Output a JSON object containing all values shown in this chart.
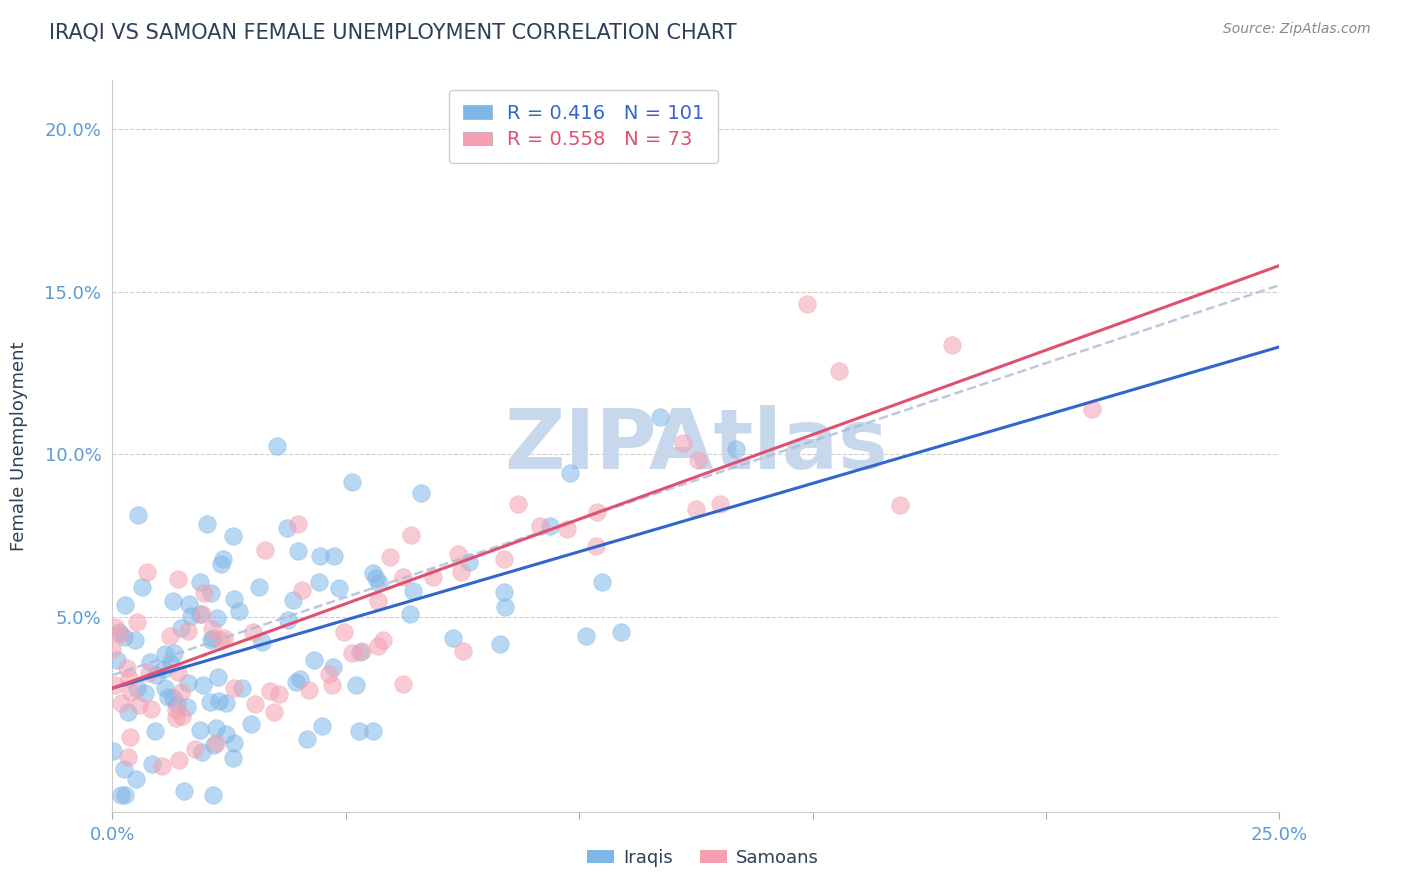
{
  "title": "IRAQI VS SAMOAN FEMALE UNEMPLOYMENT CORRELATION CHART",
  "source": "Source: ZipAtlas.com",
  "ylabel": "Female Unemployment",
  "xlim": [
    0.0,
    0.25
  ],
  "ylim": [
    -0.01,
    0.215
  ],
  "yticks": [
    0.05,
    0.1,
    0.15,
    0.2
  ],
  "ytick_labels": [
    "5.0%",
    "10.0%",
    "15.0%",
    "20.0%"
  ],
  "xticks": [
    0.0,
    0.05,
    0.1,
    0.15,
    0.2,
    0.25
  ],
  "xtick_labels": [
    "0.0%",
    "",
    "",
    "",
    "",
    "25.0%"
  ],
  "iraqis_R": 0.416,
  "iraqis_N": 101,
  "samoans_R": 0.558,
  "samoans_N": 73,
  "iraqi_color": "#7EB6E8",
  "samoan_color": "#F4A0B0",
  "iraqi_line_color": "#3366CC",
  "samoan_line_color": "#E05070",
  "iraqi_dash_color": "#AABBD8",
  "watermark": "ZIPAtlas",
  "watermark_color": "#C8D8EC",
  "background_color": "#FFFFFF",
  "title_color": "#2E4057",
  "axis_color": "#5B9BD5",
  "grid_color": "#BBBBBB",
  "iraqi_intercept": 0.028,
  "iraqi_slope": 0.42,
  "samoan_intercept": 0.028,
  "samoan_slope": 0.52,
  "iraqi_dash_intercept": 0.032,
  "iraqi_dash_slope": 0.48
}
